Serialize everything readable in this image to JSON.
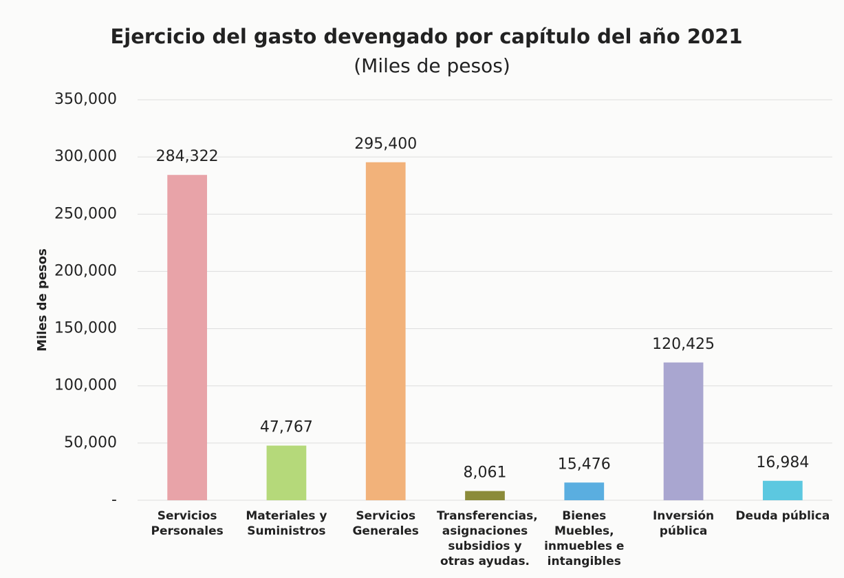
{
  "chart_data": {
    "type": "bar",
    "title": "Ejercicio del gasto devengado por capítulo del año 2021",
    "subtitle": "(Miles de pesos)",
    "ylabel": "Miles de pesos",
    "categories": [
      "Servicios Personales",
      "Materiales y Suministros",
      "Servicios Generales",
      "Transferencias, asignaciones subsidios y otras ayudas.",
      "Bienes Muebles, inmuebles e intangibles",
      "Inversión pública",
      "Deuda pública"
    ],
    "values": [
      284322,
      47767,
      295400,
      8061,
      15476,
      120425,
      16984
    ],
    "value_labels": [
      "284,322",
      "47,767",
      "295,400",
      "8,061",
      "15,476",
      "120,425",
      "16,984"
    ],
    "colors": [
      "#e8a3a8",
      "#b5d97a",
      "#f2b27a",
      "#8b8b3a",
      "#5aaee0",
      "#a9a6d0",
      "#5cc8e0"
    ],
    "ylim": [
      0,
      350000
    ],
    "yticks": [
      {
        "value": 0,
        "label": "-"
      },
      {
        "value": 50000,
        "label": "50,000"
      },
      {
        "value": 100000,
        "label": "100,000"
      },
      {
        "value": 150000,
        "label": "150,000"
      },
      {
        "value": 200000,
        "label": "200,000"
      },
      {
        "value": 250000,
        "label": "250,000"
      },
      {
        "value": 300000,
        "label": "300,000"
      },
      {
        "value": 350000,
        "label": "350,000"
      }
    ],
    "grid": true
  }
}
